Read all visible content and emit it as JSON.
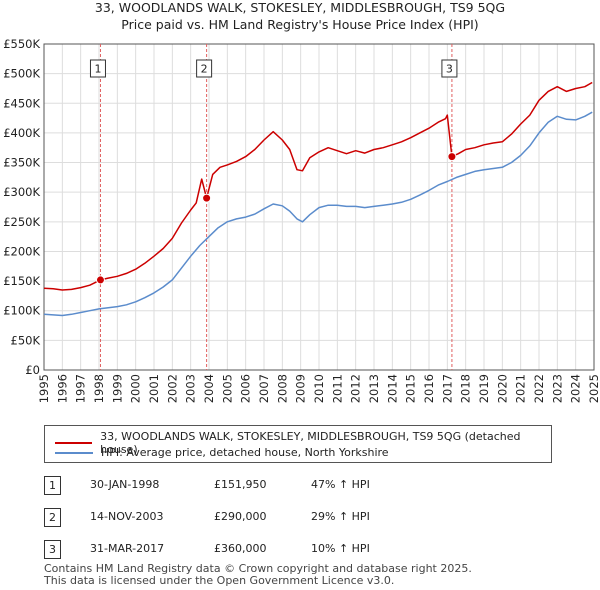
{
  "title_line1": "33, WOODLANDS WALK, STOKESLEY, MIDDLESBROUGH, TS9 5QG",
  "title_line2": "Price paid vs. HM Land Registry's House Price Index (HPI)",
  "colors": {
    "property": "#cc0000",
    "hpi": "#5b8ccc",
    "vline": "#e06060",
    "grid": "#dddddd"
  },
  "chart_data": {
    "type": "line",
    "title": "33, WOODLANDS WALK, STOKESLEY, MIDDLESBROUGH, TS9 5QG — Price paid vs. HM Land Registry's House Price Index (HPI)",
    "xlabel": "",
    "ylabel": "",
    "xlim": [
      1995,
      2025
    ],
    "ylim": [
      0,
      550000
    ],
    "y_ticks": [
      0,
      50000,
      100000,
      150000,
      200000,
      250000,
      300000,
      350000,
      400000,
      450000,
      500000,
      550000
    ],
    "y_tick_labels": [
      "£0",
      "£50K",
      "£100K",
      "£150K",
      "£200K",
      "£250K",
      "£300K",
      "£350K",
      "£400K",
      "£450K",
      "£500K",
      "£550K"
    ],
    "x_ticks": [
      1995,
      1996,
      1997,
      1998,
      1999,
      2000,
      2001,
      2002,
      2003,
      2004,
      2005,
      2006,
      2007,
      2008,
      2009,
      2010,
      2011,
      2012,
      2013,
      2014,
      2015,
      2016,
      2017,
      2018,
      2019,
      2020,
      2021,
      2022,
      2023,
      2024,
      2025
    ],
    "grid": true,
    "series": [
      {
        "name": "33, WOODLANDS WALK, STOKESLEY, MIDDLESBROUGH, TS9 5QG (detached house)",
        "color": "#cc0000",
        "x": [
          1995.0,
          1995.5,
          1996.0,
          1996.5,
          1997.0,
          1997.5,
          1998.08,
          1998.5,
          1999.0,
          1999.5,
          2000.0,
          2000.5,
          2001.0,
          2001.5,
          2002.0,
          2002.5,
          2003.0,
          2003.3,
          2003.6,
          2003.87,
          2004.2,
          2004.6,
          2005.0,
          2005.5,
          2006.0,
          2006.5,
          2007.0,
          2007.5,
          2008.0,
          2008.4,
          2008.8,
          2009.1,
          2009.5,
          2010.0,
          2010.5,
          2011.0,
          2011.5,
          2012.0,
          2012.5,
          2013.0,
          2013.5,
          2014.0,
          2014.5,
          2015.0,
          2015.5,
          2016.0,
          2016.5,
          2016.9,
          2017.0,
          2017.25,
          2017.6,
          2018.0,
          2018.5,
          2019.0,
          2019.5,
          2020.0,
          2020.5,
          2021.0,
          2021.5,
          2022.0,
          2022.5,
          2023.0,
          2023.5,
          2024.0,
          2024.5,
          2024.9
        ],
        "values": [
          138000,
          137000,
          135000,
          136000,
          139000,
          143000,
          151950,
          155000,
          158000,
          163000,
          170000,
          180000,
          192000,
          205000,
          222000,
          248000,
          270000,
          282000,
          322000,
          290000,
          330000,
          342000,
          346000,
          352000,
          360000,
          372000,
          388000,
          402000,
          388000,
          372000,
          338000,
          336000,
          358000,
          368000,
          375000,
          370000,
          365000,
          370000,
          366000,
          372000,
          375000,
          380000,
          385000,
          392000,
          400000,
          408000,
          418000,
          424000,
          430000,
          360000,
          365000,
          372000,
          375000,
          380000,
          383000,
          385000,
          398000,
          415000,
          430000,
          455000,
          470000,
          478000,
          470000,
          475000,
          478000,
          485000
        ]
      },
      {
        "name": "HPI: Average price, detached house, North Yorkshire",
        "color": "#5b8ccc",
        "x": [
          1995.0,
          1995.5,
          1996.0,
          1996.5,
          1997.0,
          1997.5,
          1998.0,
          1998.5,
          1999.0,
          1999.5,
          2000.0,
          2000.5,
          2001.0,
          2001.5,
          2002.0,
          2002.5,
          2003.0,
          2003.5,
          2004.0,
          2004.5,
          2005.0,
          2005.5,
          2006.0,
          2006.5,
          2007.0,
          2007.5,
          2008.0,
          2008.4,
          2008.8,
          2009.1,
          2009.5,
          2010.0,
          2010.5,
          2011.0,
          2011.5,
          2012.0,
          2012.5,
          2013.0,
          2013.5,
          2014.0,
          2014.5,
          2015.0,
          2015.5,
          2016.0,
          2016.5,
          2017.0,
          2017.5,
          2018.0,
          2018.5,
          2019.0,
          2019.5,
          2020.0,
          2020.5,
          2021.0,
          2021.5,
          2022.0,
          2022.5,
          2023.0,
          2023.5,
          2024.0,
          2024.5,
          2024.9
        ],
        "values": [
          94000,
          93000,
          92000,
          94000,
          97000,
          100000,
          103000,
          105000,
          107000,
          110000,
          115000,
          122000,
          130000,
          140000,
          152000,
          172000,
          192000,
          210000,
          225000,
          240000,
          250000,
          255000,
          258000,
          263000,
          272000,
          280000,
          277000,
          268000,
          255000,
          250000,
          262000,
          274000,
          278000,
          278000,
          276000,
          276000,
          274000,
          276000,
          278000,
          280000,
          283000,
          288000,
          295000,
          303000,
          312000,
          318000,
          325000,
          330000,
          335000,
          338000,
          340000,
          342000,
          350000,
          362000,
          378000,
          400000,
          418000,
          428000,
          423000,
          422000,
          428000,
          435000
        ]
      }
    ],
    "sales": [
      {
        "label": "1",
        "x": 1998.08,
        "value": 151950
      },
      {
        "label": "2",
        "x": 2003.87,
        "value": 290000
      },
      {
        "label": "3",
        "x": 2017.25,
        "value": 360000
      }
    ]
  },
  "legend": {
    "property_label": "33, WOODLANDS WALK, STOKESLEY, MIDDLESBROUGH, TS9 5QG (detached house)",
    "hpi_label": "HPI: Average price, detached house, North Yorkshire"
  },
  "sales_table": [
    {
      "num": "1",
      "date": "30-JAN-1998",
      "price": "£151,950",
      "hpi": "47% ↑ HPI"
    },
    {
      "num": "2",
      "date": "14-NOV-2003",
      "price": "£290,000",
      "hpi": "29% ↑ HPI"
    },
    {
      "num": "3",
      "date": "31-MAR-2017",
      "price": "£360,000",
      "hpi": "10% ↑ HPI"
    }
  ],
  "footer": {
    "line1": "Contains HM Land Registry data © Crown copyright and database right 2025.",
    "line2": "This data is licensed under the Open Government Licence v3.0."
  }
}
